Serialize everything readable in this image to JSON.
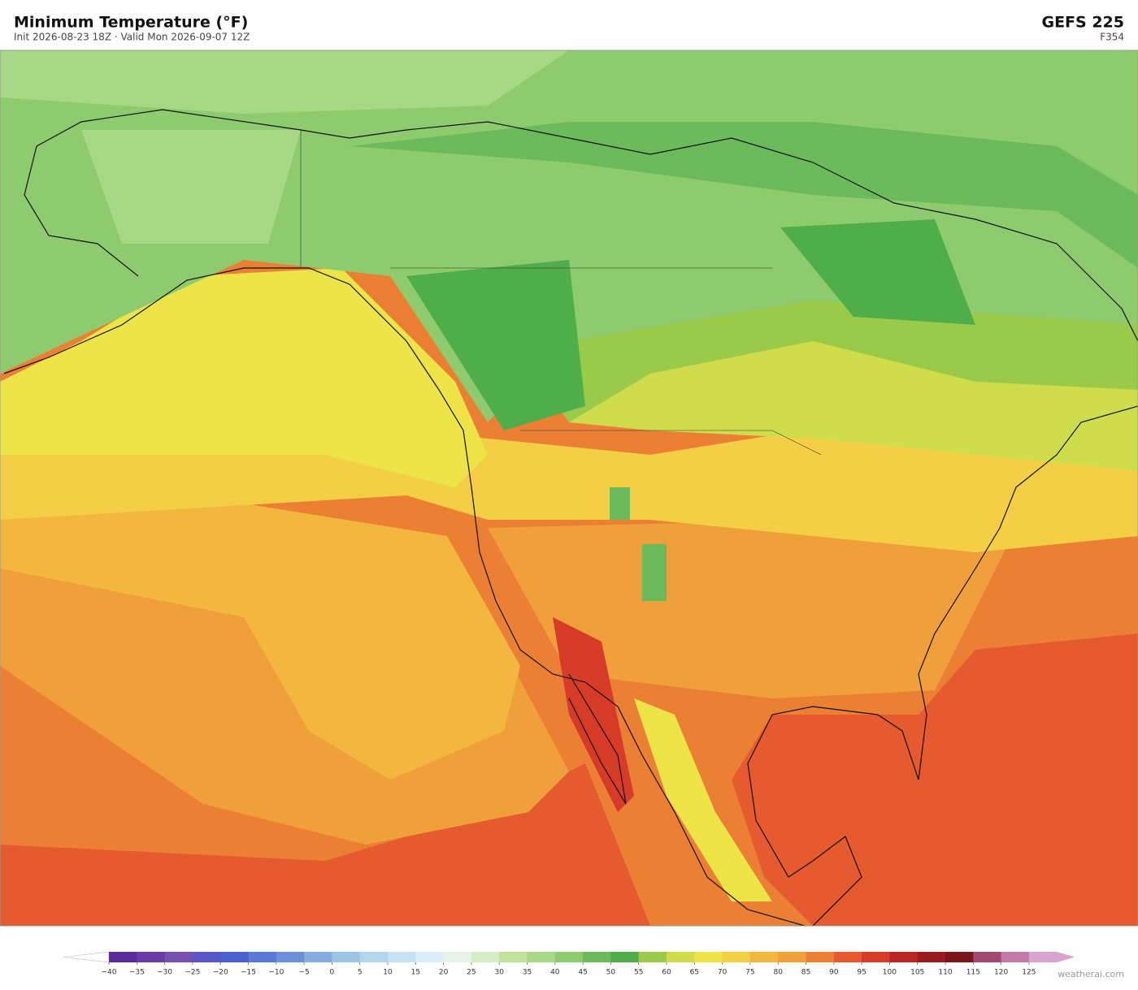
{
  "header": {
    "title": "Minimum Temperature  (°F)",
    "subtitle": "Init 2026-08-23 18Z  ·  Valid Mon 2026-09-07 12Z",
    "model": "GEFS  225",
    "forecast_hour": "F354"
  },
  "colorbar": {
    "ticks": [
      {
        "value": -40,
        "label": "−40"
      },
      {
        "value": -35,
        "label": "−35"
      },
      {
        "value": -30,
        "label": "−30"
      },
      {
        "value": -25,
        "label": "−25"
      },
      {
        "value": -20,
        "label": "−20"
      },
      {
        "value": -15,
        "label": "−15"
      },
      {
        "value": -10,
        "label": "−10"
      },
      {
        "value": -5,
        "label": "−5"
      },
      0,
      5,
      10,
      15,
      20,
      25,
      30,
      35,
      40,
      45,
      50,
      55,
      60,
      65,
      70,
      75,
      80,
      85,
      90,
      95,
      100,
      105,
      110,
      115,
      120,
      125
    ],
    "colors": [
      "#5b2a9a",
      "#6a3aa6",
      "#7550b0",
      "#5a55c8",
      "#4a5fd0",
      "#5a78d5",
      "#6b8fd8",
      "#86acdf",
      "#9dc4e6",
      "#b2d6ee",
      "#c6e2f2",
      "#dceef5",
      "#e8f3e8",
      "#d6ecc8",
      "#c2e29e",
      "#a8d886",
      "#8dcb6e",
      "#6bbb5c",
      "#4fae4a",
      "#9bc94a",
      "#cfdc4c",
      "#ede447",
      "#f4cf45",
      "#f3b740",
      "#f0a03a",
      "#eb8035",
      "#e55a2e",
      "#d63c27",
      "#b82522",
      "#961a1e",
      "#7a1519",
      "#a04870",
      "#c07aa8",
      "#d9a4cf"
    ],
    "under_color": "#ffffff",
    "over_color": "#d9a4cf"
  },
  "watermark": "weatherai.com"
}
